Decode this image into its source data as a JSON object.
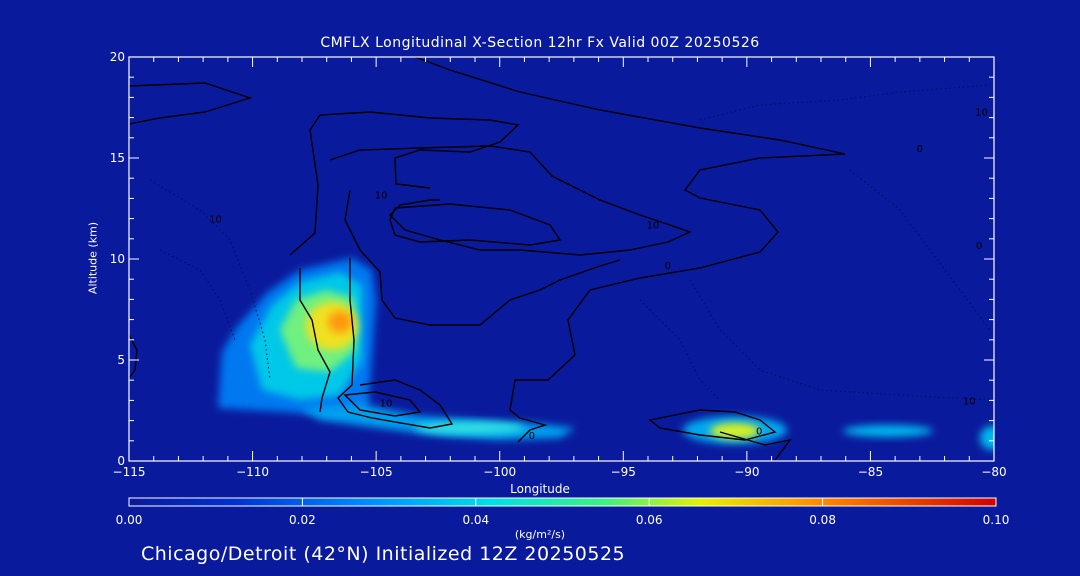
{
  "chart_data": {
    "type": "contour",
    "title": "CMFLX Longitudinal X-Section 12hr  Fx Valid 00Z 20250526",
    "xlabel": "Longitude",
    "ylabel": "Altitude (km)",
    "xlim": [
      -115,
      -80
    ],
    "ylim": [
      0,
      20
    ],
    "x_ticks": [
      -115,
      -110,
      -105,
      -100,
      -95,
      -90,
      -85,
      -80
    ],
    "y_ticks": [
      0,
      5,
      10,
      15,
      20
    ],
    "colorbar": {
      "min": 0.0,
      "max": 0.1,
      "ticks": [
        "0.00",
        "0.02",
        "0.04",
        "0.06",
        "0.08",
        "0.10"
      ],
      "unit": "(kg/m²/s)"
    },
    "contour_labels": [
      {
        "text": "10",
        "lon": -111.5,
        "alt": 11.8
      },
      {
        "text": "10",
        "lon": -104.8,
        "alt": 13.0
      },
      {
        "text": "10",
        "lon": -93.8,
        "alt": 11.5
      },
      {
        "text": "0",
        "lon": -93.2,
        "alt": 9.5
      },
      {
        "text": "0",
        "lon": -83.0,
        "alt": 15.3
      },
      {
        "text": "10",
        "lon": -80.5,
        "alt": 17.1
      },
      {
        "text": "0",
        "lon": -80.6,
        "alt": 10.5
      },
      {
        "text": "10",
        "lon": -104.6,
        "alt": 2.7
      },
      {
        "text": "0",
        "lon": -98.7,
        "alt": 1.1
      },
      {
        "text": "0",
        "lon": -89.5,
        "alt": 1.3
      },
      {
        "text": "10",
        "lon": -81.0,
        "alt": 2.8
      }
    ],
    "flux_cells": [
      {
        "lon": -106.5,
        "alt": 6.6,
        "value": 0.065
      },
      {
        "lon": -108.0,
        "alt": 5.5,
        "value": 0.045
      },
      {
        "lon": -106.0,
        "alt": 8.8,
        "value": 0.03
      },
      {
        "lon": -104.5,
        "alt": 2.2,
        "value": 0.022
      },
      {
        "lon": -100.0,
        "alt": 1.5,
        "value": 0.028
      },
      {
        "lon": -89.5,
        "alt": 1.3,
        "value": 0.058
      },
      {
        "lon": -85.0,
        "alt": 1.3,
        "value": 0.03
      },
      {
        "lon": -80.1,
        "alt": 1.0,
        "value": 0.025
      }
    ]
  },
  "footer": "Chicago/Detroit (42°N) Initialized 12Z 20250525"
}
